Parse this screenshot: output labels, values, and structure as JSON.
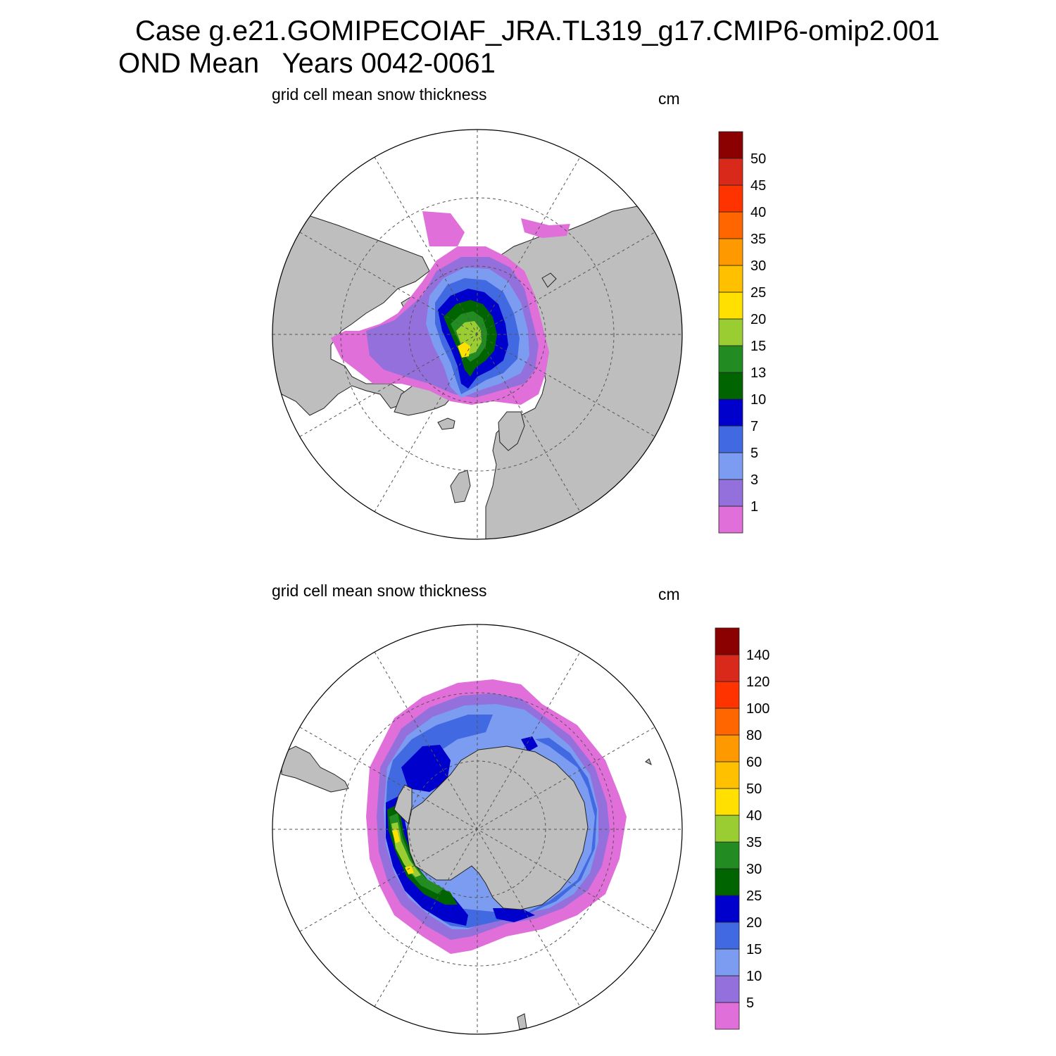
{
  "header": {
    "title_line1": "Case g.e21.GOMIPECOIAF_JRA.TL319_g17.CMIP6-omip2.001",
    "title_line2": "OND Mean   Years 0042-0061"
  },
  "colors": {
    "land": "#bebebe",
    "ocean_no_ice": "#ffffff",
    "colorbar": [
      "#e06fda",
      "#9370db",
      "#7b9cf0",
      "#4169e1",
      "#0000cd",
      "#006400",
      "#228b22",
      "#9acd32",
      "#ffe000",
      "#ffc000",
      "#ff9900",
      "#ff6600",
      "#ff3300",
      "#d9291a",
      "#8b0000"
    ]
  },
  "panels": [
    {
      "id": "north",
      "title": "grid cell mean snow thickness",
      "units": "cm",
      "hemisphere": "Northern",
      "colorbar_levels": [
        "1",
        "3",
        "5",
        "7",
        "10",
        "13",
        "15",
        "20",
        "25",
        "30",
        "35",
        "40",
        "45",
        "50"
      ]
    },
    {
      "id": "south",
      "title": "grid cell mean snow thickness",
      "units": "cm",
      "hemisphere": "Southern",
      "colorbar_levels": [
        "5",
        "10",
        "15",
        "20",
        "25",
        "30",
        "35",
        "40",
        "50",
        "60",
        "80",
        "100",
        "120",
        "140"
      ]
    }
  ]
}
